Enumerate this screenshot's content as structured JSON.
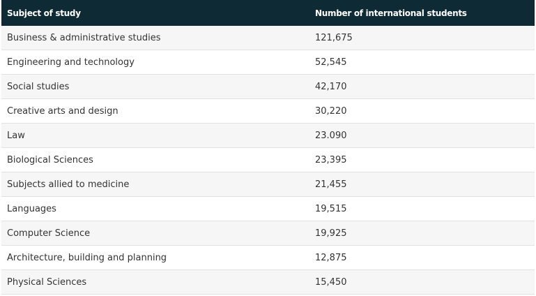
{
  "table": {
    "header": [
      "Subject of study",
      "Number of international students"
    ],
    "rows": [
      [
        "Business & administrative studies",
        "121,675"
      ],
      [
        "Engineering and technology",
        "52,545"
      ],
      [
        "Social studies",
        "42,170"
      ],
      [
        "Creative arts and design",
        "30,220"
      ],
      [
        "Law",
        "23.090"
      ],
      [
        "Biological Sciences",
        "23,395"
      ],
      [
        "Subjects allied to medicine",
        "21,455"
      ],
      [
        "Languages",
        "19,515"
      ],
      [
        "Computer Science",
        "19,925"
      ],
      [
        "Architecture, building and planning",
        "12,875"
      ],
      [
        "Physical Sciences",
        "15,450"
      ]
    ]
  }
}
